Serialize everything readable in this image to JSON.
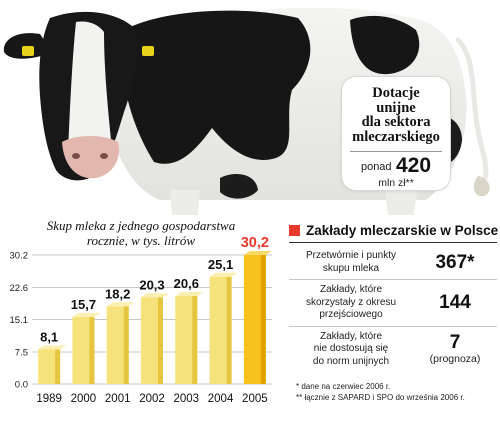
{
  "subsidy_box": {
    "title_lines": [
      "Dotacje",
      "unijne",
      "dla sektora",
      "mleczarskiego"
    ],
    "amount_prefix": "ponad",
    "amount_value": "420",
    "amount_unit": "mln zł**"
  },
  "chart_data": {
    "type": "bar",
    "title_lines": [
      "Skup mleka z jednego gospodarstwa",
      "rocznie, w tys. litrów"
    ],
    "categories": [
      "1989",
      "2000",
      "2001",
      "2002",
      "2003",
      "2004",
      "2005"
    ],
    "values": [
      8.1,
      15.7,
      18.2,
      20.3,
      20.6,
      25.1,
      30.2
    ],
    "value_labels": [
      "8,1",
      "15,7",
      "18,2",
      "20,3",
      "20,6",
      "25,1",
      "30,2"
    ],
    "yticks": [
      0.0,
      7.5,
      15.1,
      22.6,
      30.2
    ],
    "ytick_labels": [
      "0.0",
      "7.5",
      "15.1",
      "22.6",
      "30.2"
    ],
    "ylim": [
      0,
      30.2
    ],
    "highlight_index": 6,
    "grid": true,
    "colors": {
      "bar": "#f5e27a",
      "bar_shade": "#e6c53f",
      "highlight": "#f8c21e",
      "highlight_shade": "#e0a400",
      "highlight_label": "#e8392b",
      "grid": "#c9c9c9"
    }
  },
  "table": {
    "title": "Zakłady mleczarskie w Polsce",
    "marker_color": "#e8392b",
    "rows": [
      {
        "label_lines": [
          "Przetwórnie i punkty",
          "skupu mleka"
        ],
        "value": "367*",
        "note": ""
      },
      {
        "label_lines": [
          "Zakłady, które",
          "skorzystały z okresu",
          "przejściowego"
        ],
        "value": "144",
        "note": ""
      },
      {
        "label_lines": [
          "Zakłady, które",
          "nie dostosują się",
          "do norm unijnych"
        ],
        "value": "7",
        "note": "(prognoza)"
      }
    ]
  },
  "footnotes": [
    "*  dane na czerwiec 2006 r.",
    "** łącznie z SAPARD i SPO do września 2006 r."
  ]
}
